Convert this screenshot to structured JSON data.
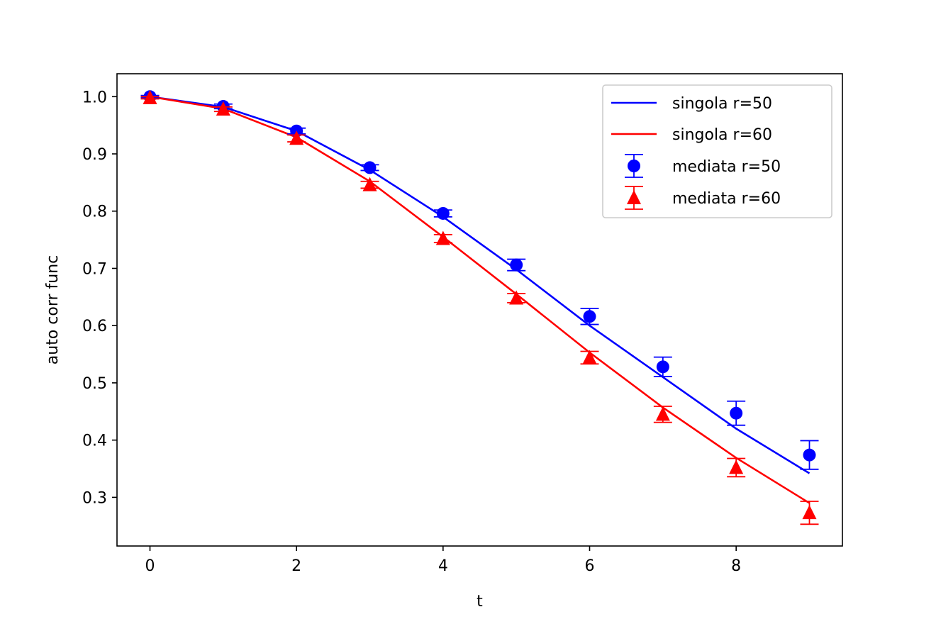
{
  "chart_data": {
    "type": "line",
    "xlabel": "t",
    "ylabel": "auto corr func",
    "xlim": [
      -0.45,
      9.45
    ],
    "ylim": [
      0.215,
      1.04
    ],
    "x_ticks": [
      0,
      2,
      4,
      6,
      8
    ],
    "y_ticks": [
      0.3,
      0.4,
      0.5,
      0.6,
      0.7,
      0.8,
      0.9,
      1.0
    ],
    "x_tick_labels": [
      "0",
      "2",
      "4",
      "6",
      "8"
    ],
    "y_tick_labels": [
      "0.3",
      "0.4",
      "0.5",
      "0.6",
      "0.7",
      "0.8",
      "0.9",
      "1.0"
    ],
    "grid": false,
    "legend_position": "upper right",
    "x": [
      0,
      1,
      2,
      3,
      4,
      5,
      6,
      7,
      8,
      9
    ],
    "series": [
      {
        "name": "singola r=50",
        "kind": "line",
        "color": "#0000ff",
        "values": [
          1.0,
          0.982,
          0.94,
          0.872,
          0.79,
          0.698,
          0.6,
          0.51,
          0.42,
          0.342
        ]
      },
      {
        "name": "singola r=60",
        "kind": "line",
        "color": "#ff0000",
        "values": [
          1.0,
          0.979,
          0.929,
          0.852,
          0.755,
          0.655,
          0.553,
          0.457,
          0.369,
          0.29
        ]
      },
      {
        "name": "mediata r=50",
        "kind": "errorbar",
        "marker": "circle",
        "color": "#0000ff",
        "values": [
          1.0,
          0.983,
          0.94,
          0.876,
          0.796,
          0.706,
          0.616,
          0.528,
          0.447,
          0.374
        ],
        "errors": [
          0.002,
          0.004,
          0.005,
          0.005,
          0.006,
          0.01,
          0.014,
          0.017,
          0.021,
          0.025
        ]
      },
      {
        "name": "mediata r=60",
        "kind": "errorbar",
        "marker": "triangle",
        "color": "#ff0000",
        "values": [
          0.998,
          0.978,
          0.927,
          0.846,
          0.752,
          0.648,
          0.544,
          0.445,
          0.352,
          0.273
        ],
        "errors": [
          0.002,
          0.004,
          0.006,
          0.006,
          0.007,
          0.008,
          0.011,
          0.014,
          0.016,
          0.02
        ]
      }
    ]
  }
}
